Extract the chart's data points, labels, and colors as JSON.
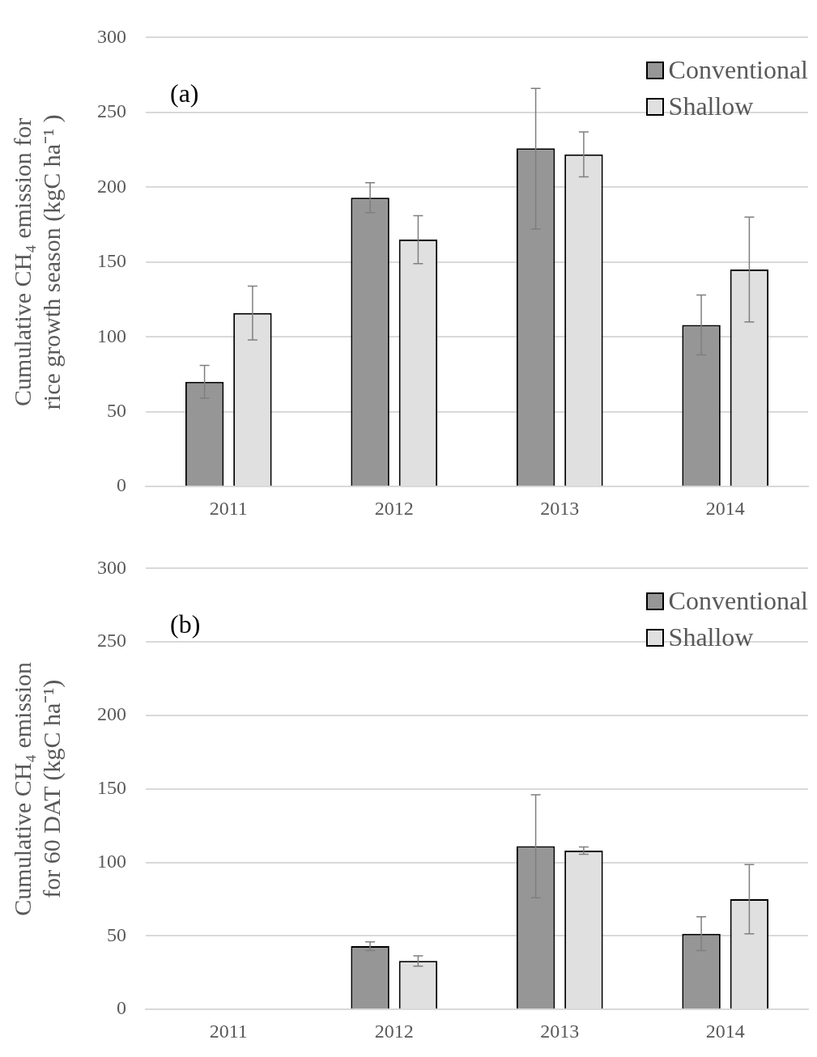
{
  "chart_data": [
    {
      "type": "bar",
      "categories": [
        "2011",
        "2012",
        "2013",
        "2014"
      ],
      "series": [
        {
          "name": "Conventional",
          "color": "#969696",
          "values": [
            70,
            193,
            226,
            108
          ],
          "errors": [
            11,
            10,
            [
              172,
              266
            ],
            20
          ]
        },
        {
          "name": "Shallow",
          "color": "#e0e0e0",
          "values": [
            116,
            165,
            222,
            145
          ],
          "errors": [
            18,
            16,
            15,
            35
          ]
        }
      ],
      "ylabel": "Cumulative CH₄ emission for rice growth season (kgC ha⁻¹ )",
      "ylim": [
        0,
        300
      ],
      "yticks": [
        0,
        50,
        100,
        150,
        200,
        250,
        300
      ],
      "grid": "y",
      "legend": "top right",
      "annotations": [
        "(a)"
      ]
    },
    {
      "type": "bar",
      "categories": [
        "2011",
        "2012",
        "2013",
        "2014"
      ],
      "series": [
        {
          "name": "Conventional",
          "color": "#969696",
          "values": [
            null,
            43,
            111,
            51.5
          ],
          "errors": [
            null,
            3,
            35,
            11.5
          ]
        },
        {
          "name": "Shallow",
          "color": "#e0e0e0",
          "values": [
            null,
            33,
            108,
            75
          ],
          "errors": [
            null,
            3.5,
            2.5,
            23.5
          ]
        }
      ],
      "ylabel": "Cumulative CH₄ emission for 60 DAT (kgC ha⁻¹)",
      "ylim": [
        0,
        300
      ],
      "yticks": [
        0,
        50,
        100,
        150,
        200,
        250,
        300
      ],
      "grid": "y",
      "legend": "top right",
      "annotations": [
        "(b)"
      ]
    }
  ]
}
